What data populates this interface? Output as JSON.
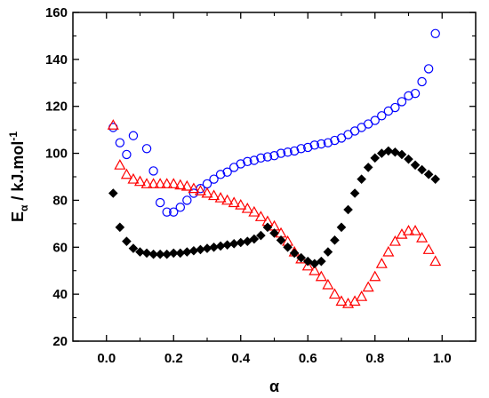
{
  "chart_data": {
    "type": "scatter",
    "title": "",
    "xlabel": "α",
    "ylabel": {
      "base": "E",
      "sub": "α",
      "rest": " / kJ.mol",
      "sup": "-1"
    },
    "xlim": [
      -0.1,
      1.1
    ],
    "ylim": [
      20,
      160
    ],
    "xticks": [
      0.0,
      0.2,
      0.4,
      0.6,
      0.8,
      1.0
    ],
    "xtick_labels": [
      "0.0",
      "0.2",
      "0.4",
      "0.6",
      "0.8",
      "1.0"
    ],
    "yticks": [
      20,
      40,
      60,
      80,
      100,
      120,
      140,
      160
    ],
    "ytick_labels": [
      "20",
      "40",
      "60",
      "80",
      "100",
      "120",
      "140",
      "160"
    ],
    "grid": false,
    "legend": "none",
    "series": [
      {
        "marker": "circle-open",
        "color": "#0000ff",
        "x": [
          0.02,
          0.04,
          0.06,
          0.08,
          0.12,
          0.14,
          0.16,
          0.18,
          0.2,
          0.22,
          0.24,
          0.26,
          0.28,
          0.3,
          0.32,
          0.34,
          0.36,
          0.38,
          0.4,
          0.42,
          0.44,
          0.46,
          0.48,
          0.5,
          0.52,
          0.54,
          0.56,
          0.58,
          0.6,
          0.62,
          0.64,
          0.66,
          0.68,
          0.7,
          0.72,
          0.74,
          0.76,
          0.78,
          0.8,
          0.82,
          0.84,
          0.86,
          0.88,
          0.9,
          0.92,
          0.94,
          0.96,
          0.98
        ],
        "y": [
          111,
          104.5,
          99.5,
          107.5,
          102,
          92.5,
          79,
          75,
          75,
          77,
          80,
          83,
          85,
          87,
          89,
          91,
          92,
          94,
          95.5,
          96.5,
          97,
          98,
          98.5,
          99,
          100,
          100.5,
          101,
          102,
          102.5,
          103.5,
          104,
          104.5,
          105.5,
          106.5,
          108,
          109.5,
          111,
          112.5,
          114,
          116,
          118,
          119.5,
          122,
          124.5,
          125.5,
          130.5,
          136,
          151
        ]
      },
      {
        "marker": "triangle-open",
        "color": "#ff0000",
        "x": [
          0.02,
          0.04,
          0.06,
          0.08,
          0.1,
          0.12,
          0.14,
          0.16,
          0.18,
          0.2,
          0.22,
          0.24,
          0.26,
          0.28,
          0.3,
          0.32,
          0.34,
          0.36,
          0.38,
          0.4,
          0.42,
          0.44,
          0.46,
          0.48,
          0.5,
          0.52,
          0.54,
          0.56,
          0.58,
          0.6,
          0.62,
          0.64,
          0.66,
          0.68,
          0.7,
          0.72,
          0.74,
          0.76,
          0.78,
          0.8,
          0.82,
          0.84,
          0.86,
          0.88,
          0.9,
          0.92,
          0.94,
          0.96,
          0.98
        ],
        "y": [
          112,
          95,
          91,
          89,
          88,
          87,
          87,
          87,
          87,
          87,
          86.5,
          86,
          85,
          84,
          83,
          82,
          81,
          80,
          79,
          78,
          76.5,
          75,
          73,
          71,
          69,
          66,
          62.5,
          58,
          55,
          52,
          50,
          47.5,
          44,
          40,
          37,
          36,
          37,
          39,
          43,
          47.5,
          53,
          58,
          62.5,
          65.5,
          67,
          67,
          64,
          59,
          54
        ]
      },
      {
        "marker": "diamond-filled",
        "color": "#000000",
        "x": [
          0.02,
          0.04,
          0.06,
          0.08,
          0.1,
          0.12,
          0.14,
          0.16,
          0.18,
          0.2,
          0.22,
          0.24,
          0.26,
          0.28,
          0.3,
          0.32,
          0.34,
          0.36,
          0.38,
          0.4,
          0.42,
          0.44,
          0.46,
          0.48,
          0.5,
          0.52,
          0.54,
          0.56,
          0.58,
          0.6,
          0.62,
          0.64,
          0.66,
          0.68,
          0.7,
          0.72,
          0.74,
          0.76,
          0.78,
          0.8,
          0.82,
          0.84,
          0.86,
          0.88,
          0.9,
          0.92,
          0.94,
          0.96,
          0.98
        ],
        "y": [
          83,
          68.5,
          62.5,
          59.5,
          58,
          57.5,
          57,
          57,
          57,
          57.5,
          57.5,
          58,
          58.5,
          59,
          59.5,
          60,
          60.5,
          61,
          61.5,
          62,
          62.5,
          63.5,
          65,
          68.5,
          66,
          63,
          60,
          57.5,
          55.5,
          54,
          53,
          54,
          58,
          63,
          68.5,
          76,
          83,
          89,
          94,
          98,
          100,
          101,
          100.5,
          99.5,
          97.5,
          95,
          93,
          91,
          89
        ]
      }
    ]
  }
}
